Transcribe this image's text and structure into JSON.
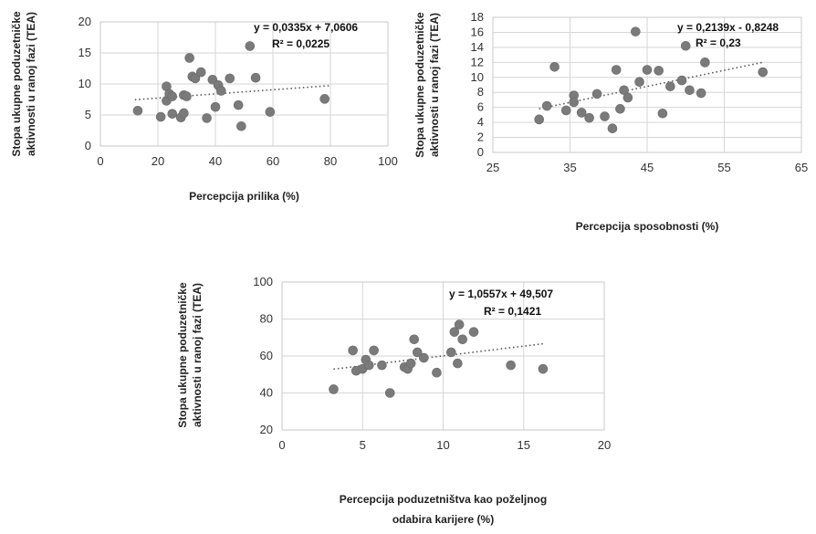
{
  "chart_data": [
    {
      "type": "scatter",
      "xlabel": "Percepcija prilika (%)",
      "ylabel": [
        "Stopa ukupne poduzetničke",
        "aktivnosti u ranoj fazi (TEA)"
      ],
      "xlim": [
        0,
        100
      ],
      "ylim": [
        0,
        20
      ],
      "xticks": [
        0,
        20,
        40,
        60,
        80,
        100
      ],
      "yticks": [
        0,
        5,
        10,
        15,
        20
      ],
      "grid": true,
      "trendline": {
        "slope": 0.0335,
        "intercept": 7.0606,
        "x_range": [
          12,
          80
        ]
      },
      "equation": "y = 0,0335x + 7,0606",
      "r2": "R² = 0,0225",
      "points": [
        [
          13,
          5.7
        ],
        [
          21,
          4.7
        ],
        [
          23,
          9.6
        ],
        [
          23,
          7.3
        ],
        [
          24,
          8.4
        ],
        [
          25,
          8.0
        ],
        [
          25,
          5.2
        ],
        [
          28,
          4.6
        ],
        [
          29,
          5.3
        ],
        [
          29,
          8.2
        ],
        [
          30,
          8.0
        ],
        [
          31,
          14.2
        ],
        [
          32,
          11.2
        ],
        [
          33,
          10.9
        ],
        [
          35,
          11.9
        ],
        [
          37,
          4.5
        ],
        [
          39,
          10.7
        ],
        [
          40,
          6.3
        ],
        [
          41,
          9.8
        ],
        [
          42,
          8.9
        ],
        [
          45,
          10.9
        ],
        [
          48,
          6.6
        ],
        [
          49,
          3.2
        ],
        [
          52,
          16.1
        ],
        [
          54,
          11.0
        ],
        [
          59,
          5.5
        ],
        [
          78,
          7.6
        ]
      ]
    },
    {
      "type": "scatter",
      "xlabel": "Percepcija sposobnosti (%)",
      "ylabel": [
        "Stopa ukupne poduzetničke",
        "aktivnosti u ranoj fazi (TEA)"
      ],
      "xlim": [
        25,
        65
      ],
      "ylim": [
        0,
        18
      ],
      "xticks": [
        25,
        35,
        45,
        55,
        65
      ],
      "yticks": [
        0,
        2,
        4,
        6,
        8,
        10,
        12,
        14,
        16,
        18
      ],
      "grid": true,
      "trendline": {
        "slope": 0.2139,
        "intercept": -0.8248,
        "x_range": [
          31,
          60
        ]
      },
      "equation": "y = 0,2139x - 0,8248",
      "r2": "R² = 0,23",
      "points": [
        [
          31,
          4.4
        ],
        [
          32,
          6.2
        ],
        [
          33,
          11.4
        ],
        [
          34.5,
          5.6
        ],
        [
          35.5,
          7.6
        ],
        [
          35.5,
          6.7
        ],
        [
          36.5,
          5.3
        ],
        [
          37.5,
          4.6
        ],
        [
          38.5,
          7.8
        ],
        [
          39.5,
          4.8
        ],
        [
          40.5,
          3.2
        ],
        [
          41,
          11.0
        ],
        [
          41.5,
          5.8
        ],
        [
          42,
          8.3
        ],
        [
          42.5,
          7.3
        ],
        [
          43.5,
          16.1
        ],
        [
          44,
          9.4
        ],
        [
          45,
          11.0
        ],
        [
          46.5,
          10.9
        ],
        [
          47,
          5.2
        ],
        [
          48,
          8.8
        ],
        [
          49.5,
          9.6
        ],
        [
          50,
          14.2
        ],
        [
          50.5,
          8.3
        ],
        [
          52,
          7.9
        ],
        [
          52.5,
          12.0
        ],
        [
          60,
          10.7
        ]
      ]
    },
    {
      "type": "scatter",
      "xlabel": [
        "Percepcija poduzetništva kao poželjnog",
        "odabira karijere (%)"
      ],
      "ylabel": [
        "Stopa ukupne poduzetničke",
        "aktivnosti u ranoj fazi (TEA)"
      ],
      "xlim": [
        0,
        20
      ],
      "ylim": [
        20,
        100
      ],
      "xticks": [
        0,
        5,
        10,
        15,
        20
      ],
      "yticks": [
        20,
        40,
        60,
        80,
        100
      ],
      "grid": true,
      "trendline": {
        "slope": 1.0557,
        "intercept": 49.507,
        "x_range": [
          3.2,
          16.2
        ]
      },
      "equation": "y = 1,0557x + 49,507",
      "r2": "R² = 0,1421",
      "points": [
        [
          3.2,
          42
        ],
        [
          4.4,
          63
        ],
        [
          4.6,
          52
        ],
        [
          5.0,
          53
        ],
        [
          5.2,
          58
        ],
        [
          5.4,
          55
        ],
        [
          5.7,
          63
        ],
        [
          6.2,
          55
        ],
        [
          6.7,
          40
        ],
        [
          7.6,
          54
        ],
        [
          7.8,
          53
        ],
        [
          8.0,
          56
        ],
        [
          8.2,
          69
        ],
        [
          8.4,
          62
        ],
        [
          8.8,
          59
        ],
        [
          9.6,
          51
        ],
        [
          10.5,
          62
        ],
        [
          10.7,
          73
        ],
        [
          10.9,
          56
        ],
        [
          11.0,
          77
        ],
        [
          11.2,
          69
        ],
        [
          11.9,
          73
        ],
        [
          14.2,
          55
        ],
        [
          16.2,
          53
        ]
      ]
    }
  ]
}
